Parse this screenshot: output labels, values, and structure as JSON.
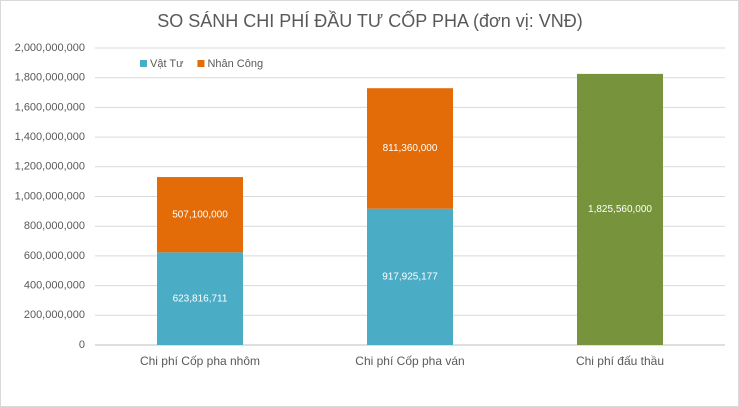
{
  "chart_data": {
    "type": "stacked-bar",
    "title": "SO SÁNH CHI PHÍ ĐẦU TƯ CỐP PHA (đơn vị: VNĐ)",
    "categories": [
      "Chi phí Cốp pha nhôm",
      "Chi phí Cốp pha ván",
      "Chi phí đấu thầu"
    ],
    "series": [
      {
        "name": "Vật Tư",
        "color": "#4bacc6",
        "values": [
          623816711,
          917925177,
          null
        ],
        "value_labels": [
          "623,816,711",
          "917,925,177",
          null
        ]
      },
      {
        "name": "Nhân Công",
        "color": "#e36c09",
        "values": [
          507100000,
          811360000,
          null
        ],
        "value_labels": [
          "507,100,000",
          "811,360,000",
          null
        ]
      },
      {
        "color": "#77933c",
        "values": [
          null,
          null,
          1825560000
        ],
        "value_labels": [
          null,
          null,
          "1,825,560,000"
        ]
      }
    ],
    "ylim": [
      0,
      2000000000
    ],
    "yticks": [
      0,
      {
        "value": 200000000,
        "label": "200,000,000"
      },
      {
        "value": 400000000,
        "label": "400,000,000"
      },
      {
        "value": 600000000,
        "label": "600,000,000"
      },
      {
        "value": 800000000,
        "label": "800,000,000"
      },
      {
        "value": 1000000000,
        "label": "1,000,000,000"
      },
      {
        "value": 1200000000,
        "label": "1,200,000,000"
      },
      {
        "value": 1400000000,
        "label": "1,400,000,000"
      },
      {
        "value": 1600000000,
        "label": "1,600,000,000"
      },
      {
        "value": 1800000000,
        "label": "1,800,000,000"
      },
      {
        "value": 2000000000,
        "label": "2,000,000,000"
      }
    ],
    "grid": true
  }
}
